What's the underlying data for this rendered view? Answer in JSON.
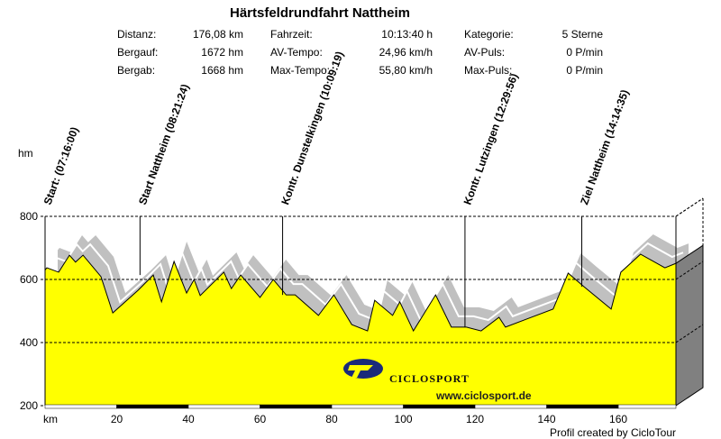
{
  "stats": {
    "col1": [
      {
        "label": "Distanz:",
        "value": "176,08 km"
      },
      {
        "label": "Bergauf:",
        "value": "1672 hm"
      },
      {
        "label": "Bergab:",
        "value": "1668 hm"
      }
    ],
    "col2": [
      {
        "label": "Fahrzeit:",
        "value": "10:13:40 h"
      },
      {
        "label": "AV-Tempo:",
        "value": "24,96 km/h"
      },
      {
        "label": "Max-Tempo:",
        "value": "55,80 km/h"
      }
    ],
    "col3": [
      {
        "label": "Kategorie:",
        "value": "5 Sterne"
      },
      {
        "label": "AV-Puls:",
        "value": "0 P/min"
      },
      {
        "label": "Max-Puls:",
        "value": "0 P/min"
      }
    ]
  },
  "credit": "Profil created by CicloTour",
  "logo": {
    "brand": "CICLOSPORT",
    "url": "www.ciclosport.de"
  },
  "colors": {
    "fill": "#ffff00",
    "shadow": "#c0c0c0",
    "side": "#808080"
  },
  "chart_data": {
    "type": "area",
    "title": "Härtsfeldrundfahrt Nattheim",
    "xlabel": "km",
    "ylabel": "hm",
    "xlim": [
      0,
      176.08
    ],
    "ylim": [
      200,
      800
    ],
    "xticks": [
      20,
      40,
      60,
      80,
      100,
      120,
      140,
      160
    ],
    "yticks": [
      200,
      400,
      600,
      800
    ],
    "grid": true,
    "x": [
      0,
      0.5,
      3.8,
      6.8,
      8.5,
      10.6,
      15.6,
      18.9,
      26,
      30.2,
      32.5,
      36,
      39.5,
      41.6,
      43.3,
      49.9,
      52,
      54.6,
      60,
      63.7,
      67.3,
      69.8,
      76.3,
      80.6,
      85.6,
      90,
      92,
      97,
      99,
      102.8,
      109,
      113.4,
      117.6,
      121.7,
      126.7,
      128.5,
      135,
      141.8,
      146,
      150.4,
      158,
      160.7,
      166.2,
      173,
      176.08
    ],
    "elevation": [
      630,
      637,
      623,
      677,
      655,
      677,
      609,
      494,
      566,
      614,
      529,
      657,
      557,
      600,
      549,
      623,
      571,
      614,
      543,
      600,
      551,
      551,
      486,
      551,
      457,
      437,
      534,
      486,
      529,
      437,
      551,
      449,
      449,
      437,
      480,
      449,
      477,
      506,
      620,
      577,
      506,
      623,
      680,
      637,
      651
    ],
    "markers": [
      {
        "km": 0,
        "label": "Start: (07:16:00)"
      },
      {
        "km": 26.5,
        "label": "Start Nattheim (08:21:24)"
      },
      {
        "km": 66.3,
        "label": "Kontr. Dunstelkingen (10:09:19)"
      },
      {
        "km": 117.2,
        "label": "Kontr. Lutzingen (12:29:56)"
      },
      {
        "km": 149.8,
        "label": "Ziel Nattheim (14:14:35)"
      }
    ]
  }
}
